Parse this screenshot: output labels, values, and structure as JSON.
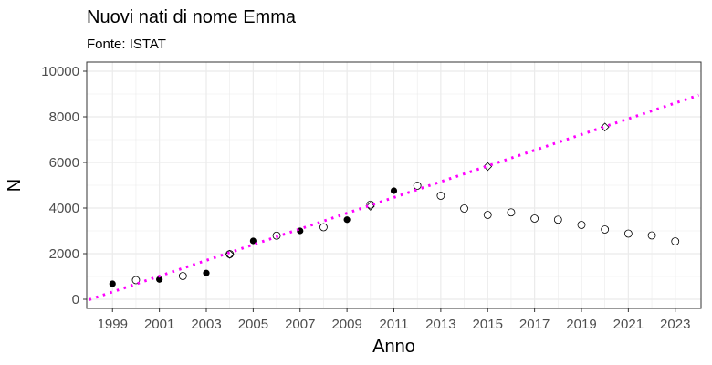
{
  "chart_data": {
    "type": "scatter",
    "title": "Nuovi nati di nome Emma",
    "subtitle": "Fonte: ISTAT",
    "xlabel": "Anno",
    "ylabel": "N",
    "xlim": [
      1997.9,
      2024.1
    ],
    "ylim": [
      -400,
      10400
    ],
    "x_ticks": [
      1999,
      2001,
      2003,
      2005,
      2007,
      2009,
      2011,
      2013,
      2015,
      2017,
      2019,
      2021,
      2023
    ],
    "x_tick_labels": [
      "1999",
      "2001",
      "2003",
      "2005",
      "2007",
      "2009",
      "2011",
      "2013",
      "2015",
      "2017",
      "2019",
      "2021",
      "2023"
    ],
    "y_ticks": [
      0,
      2000,
      4000,
      6000,
      8000,
      10000
    ],
    "y_tick_labels": [
      "0",
      "2000",
      "4000",
      "6000",
      "8000",
      "10000"
    ],
    "grid": true,
    "series": [
      {
        "marker": "filled-circle",
        "color": "#000000",
        "points": [
          [
            1999,
            680
          ],
          [
            2001,
            870
          ],
          [
            2003,
            1150
          ],
          [
            2005,
            2560
          ],
          [
            2007,
            3000
          ],
          [
            2009,
            3490
          ],
          [
            2011,
            4760
          ]
        ]
      },
      {
        "marker": "open-circle",
        "color": "#000000",
        "points": [
          [
            2000,
            840
          ],
          [
            2002,
            1020
          ],
          [
            2004,
            1980
          ],
          [
            2006,
            2790
          ],
          [
            2008,
            3160
          ],
          [
            2010,
            4150
          ],
          [
            2012,
            4980
          ],
          [
            2013,
            4540
          ],
          [
            2014,
            3980
          ],
          [
            2015,
            3700
          ],
          [
            2016,
            3810
          ],
          [
            2017,
            3540
          ],
          [
            2018,
            3490
          ],
          [
            2019,
            3260
          ],
          [
            2020,
            3060
          ],
          [
            2021,
            2880
          ],
          [
            2022,
            2800
          ],
          [
            2023,
            2540
          ]
        ]
      },
      {
        "marker": "open-diamond",
        "color": "#000000",
        "points": [
          [
            2004,
            1970
          ],
          [
            2010,
            4080
          ],
          [
            2015,
            5820
          ],
          [
            2020,
            7550
          ]
        ]
      },
      {
        "type": "line",
        "style": "dotted",
        "color": "#ff00ff",
        "points": [
          [
            1998,
            -20
          ],
          [
            2024,
            8950
          ]
        ]
      }
    ]
  }
}
